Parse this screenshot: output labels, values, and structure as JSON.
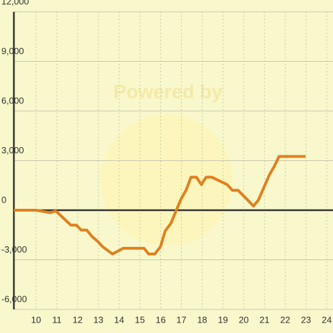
{
  "chart_data": {
    "type": "line",
    "watermark": "Powered by",
    "x": [
      8.93,
      10,
      10.67,
      10.93,
      11,
      11.67,
      11.94,
      12.17,
      12.44,
      12.7,
      12.98,
      13.2,
      13.68,
      14.2,
      15.2,
      15.42,
      15.72,
      15.99,
      16.22,
      16.49,
      16.72,
      16.99,
      17.22,
      17.46,
      17.72,
      17.96,
      18.19,
      18.46,
      19.2,
      19.46,
      19.73,
      20.2,
      20.47,
      20.7,
      21.24,
      21.47,
      21.7,
      22.98
    ],
    "series": [
      {
        "color": "#e0801e",
        "values": [
          0,
          0,
          -150,
          -50,
          -100,
          -900,
          -900,
          -1200,
          -1200,
          -1600,
          -1900,
          -2200,
          -2650,
          -2300,
          -2300,
          -2650,
          -2650,
          -2200,
          -1250,
          -800,
          -100,
          700,
          1200,
          2000,
          2000,
          1550,
          2000,
          2000,
          1550,
          1200,
          1200,
          600,
          250,
          600,
          2150,
          2650,
          3250,
          3250
        ]
      }
    ],
    "xlim": [
      8.93,
      24.3
    ],
    "xticks": [
      10,
      11,
      12,
      13,
      14,
      15,
      16,
      17,
      18,
      19,
      20,
      21,
      22,
      23,
      24
    ],
    "ylim": [
      -6000,
      12000
    ],
    "yticks": [
      {
        "value": -6000,
        "label": "-6,000"
      },
      {
        "value": -3000,
        "label": "-3,000"
      },
      0,
      {
        "value": 3000,
        "label": "3,000"
      },
      {
        "value": 6000,
        "label": "6,000"
      },
      {
        "value": 9000,
        "label": "9,000"
      },
      {
        "value": 12000,
        "label": "12,000"
      }
    ],
    "grid": true
  }
}
